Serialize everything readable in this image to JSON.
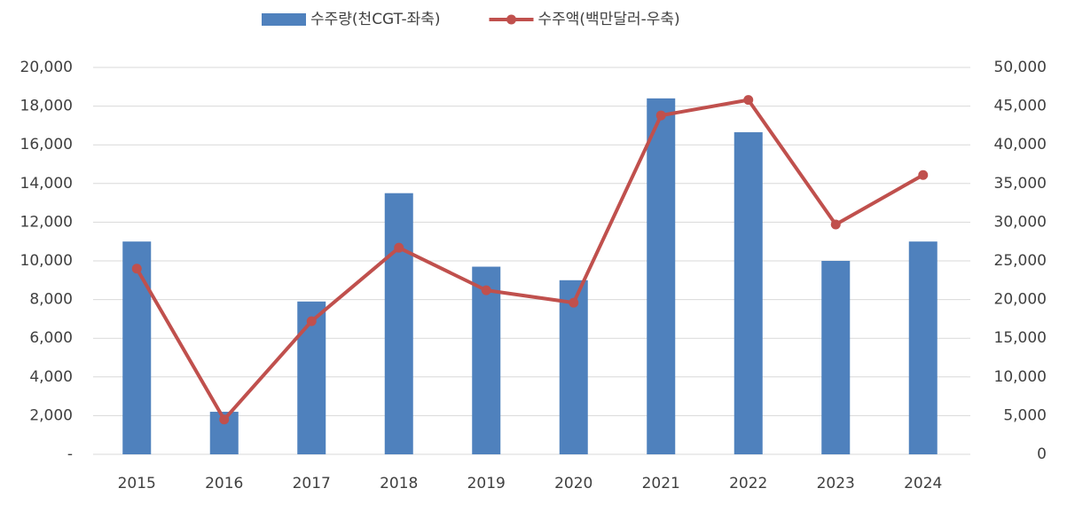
{
  "chart_data": {
    "type": "bar-line",
    "categories": [
      "2015",
      "2016",
      "2017",
      "2018",
      "2019",
      "2020",
      "2021",
      "2022",
      "2023",
      "2024"
    ],
    "series": [
      {
        "name": "수주량(천CGT-좌축)",
        "type": "bar",
        "color": "#4f81bd",
        "axis": "y",
        "values": [
          11000,
          2200,
          7900,
          13500,
          9700,
          9000,
          18400,
          16650,
          10000,
          11000
        ]
      },
      {
        "name": "수주액(백만달러-우축)",
        "type": "line",
        "color": "#c0504d",
        "axis": "y2",
        "values": [
          24000,
          4500,
          17200,
          26700,
          21200,
          19600,
          43800,
          45800,
          29700,
          36100
        ]
      }
    ],
    "ylim": [
      0,
      20000
    ],
    "yticks": [
      {
        "value": 0,
        "label": "-"
      },
      {
        "value": 2000,
        "label": "2,000"
      },
      {
        "value": 4000,
        "label": "4,000"
      },
      {
        "value": 6000,
        "label": "6,000"
      },
      {
        "value": 8000,
        "label": "8,000"
      },
      {
        "value": 10000,
        "label": "10,000"
      },
      {
        "value": 12000,
        "label": "12,000"
      },
      {
        "value": 14000,
        "label": "14,000"
      },
      {
        "value": 16000,
        "label": "16,000"
      },
      {
        "value": 18000,
        "label": "18,000"
      },
      {
        "value": 20000,
        "label": "20,000"
      }
    ],
    "y2lim": [
      0,
      50000
    ],
    "y2ticks": [
      0,
      {
        "value": 5000,
        "label": "5,000"
      },
      {
        "value": 10000,
        "label": "10,000"
      },
      {
        "value": 15000,
        "label": "15,000"
      },
      {
        "value": 20000,
        "label": "20,000"
      },
      {
        "value": 25000,
        "label": "25,000"
      },
      {
        "value": 30000,
        "label": "30,000"
      },
      {
        "value": 35000,
        "label": "35,000"
      },
      {
        "value": 40000,
        "label": "40,000"
      },
      {
        "value": 45000,
        "label": "45,000"
      },
      {
        "value": 50000,
        "label": "50,000"
      }
    ],
    "grid": true,
    "legend": "top"
  }
}
